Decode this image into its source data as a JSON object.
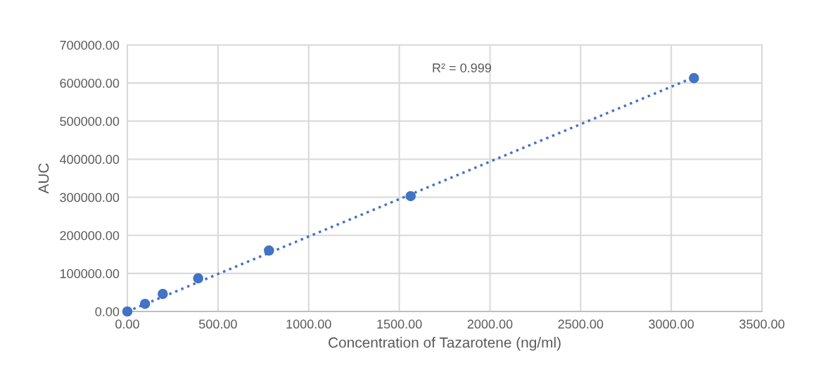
{
  "chart_data": {
    "type": "scatter",
    "xlabel": "Concentration of Tazarotene (ng/ml)",
    "ylabel": "AUC",
    "annotations": [
      "R² = 0.999"
    ],
    "series": [
      {
        "color": "#4472c4",
        "marker": "circle",
        "x": [
          0,
          97.66,
          195.31,
          390.63,
          781.25,
          1562.5,
          3125
        ],
        "values": [
          0,
          20000,
          46000,
          87000,
          160000,
          303000,
          613000
        ]
      },
      {
        "type": "line",
        "color": "#4472c4",
        "line_style": "dotted",
        "x": [
          0,
          3125
        ],
        "values": [
          0,
          615000
        ]
      }
    ],
    "xlim": [
      0,
      3500
    ],
    "ylim": [
      0,
      700000
    ],
    "xticks": [
      {
        "value": 0,
        "label": "0.00"
      },
      {
        "value": 500,
        "label": "500.00"
      },
      {
        "value": 1000,
        "label": "1000.00"
      },
      {
        "value": 1500,
        "label": "1500.00"
      },
      {
        "value": 2000,
        "label": "2000.00"
      },
      {
        "value": 2500,
        "label": "2500.00"
      },
      {
        "value": 3000,
        "label": "3000.00"
      },
      {
        "value": 3500,
        "label": "3500.00"
      }
    ],
    "yticks": [
      {
        "value": 0,
        "label": "0.00"
      },
      {
        "value": 100000,
        "label": "100000.00"
      },
      {
        "value": 200000,
        "label": "200000.00"
      },
      {
        "value": 300000,
        "label": "300000.00"
      },
      {
        "value": 400000,
        "label": "400000.00"
      },
      {
        "value": 500000,
        "label": "500000.00"
      },
      {
        "value": 600000,
        "label": "600000.00"
      },
      {
        "value": 700000,
        "label": "700000.00"
      }
    ],
    "grid": true
  }
}
